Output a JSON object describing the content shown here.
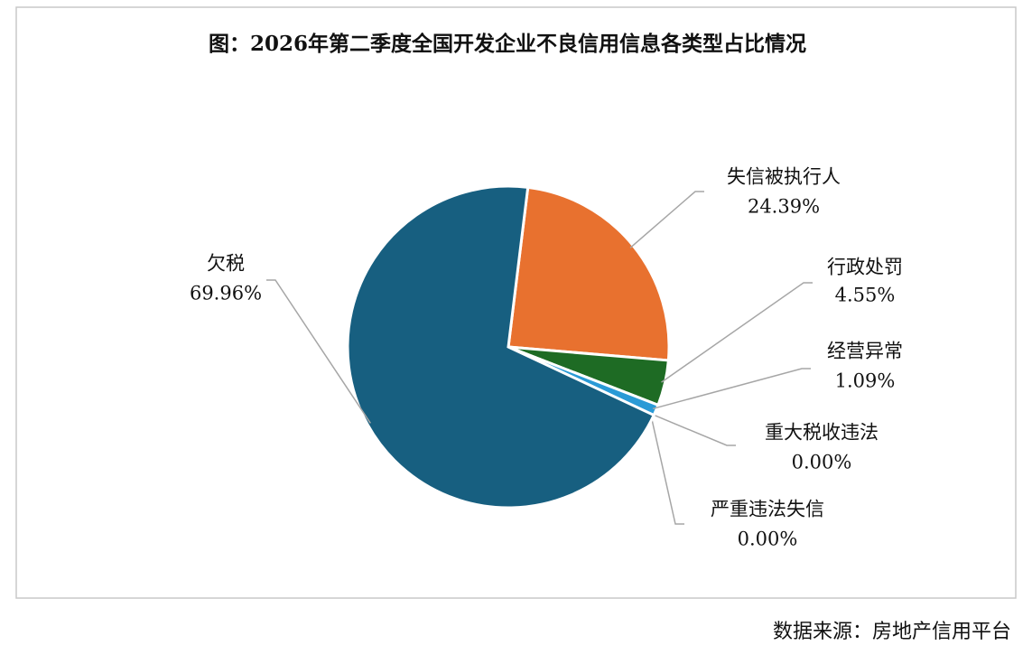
{
  "chart_data": {
    "type": "pie",
    "title": "图：2026年第二季度全国开发企业不良信用信息各类型占比情况",
    "categories": [
      "失信被执行人",
      "行政处罚",
      "经营异常",
      "重大税收违法",
      "严重违法失信",
      "欠税"
    ],
    "values": [
      24.39,
      4.55,
      1.09,
      0.0,
      0.0,
      69.96
    ],
    "value_labels": [
      "24.39%",
      "4.55%",
      "1.09%",
      "0.00%",
      "0.00%",
      "69.96%"
    ],
    "colors": [
      "#E8712F",
      "#1E6B24",
      "#2A9AD6",
      "#7F7F7F",
      "#A5A5A5",
      "#175F80"
    ],
    "source": "数据来源：房地产信用平台"
  }
}
